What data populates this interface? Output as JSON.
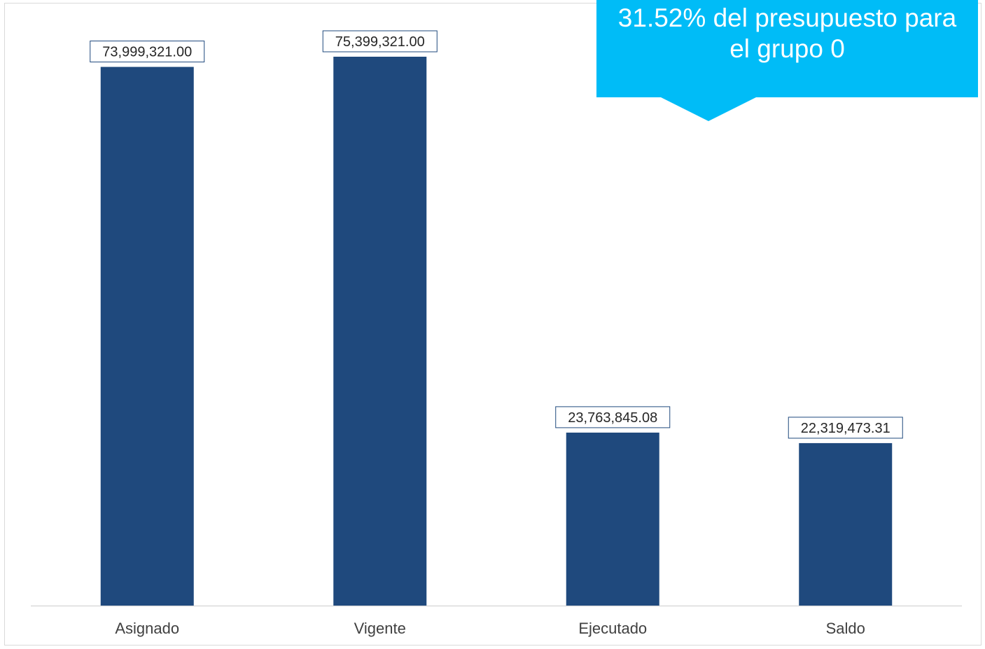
{
  "chart_data": {
    "type": "bar",
    "categories": [
      "Asignado",
      "Vigente",
      "Ejecutado",
      "Saldo"
    ],
    "values": [
      73999321.0,
      75399321.0,
      23763845.08,
      22319473.31
    ],
    "value_labels": [
      "73,999,321.00",
      "75,399,321.00",
      "23,763,845.08",
      "22,319,473.31"
    ],
    "ylim": [
      0,
      80000000
    ],
    "grid": false,
    "legend": "none",
    "bar_color": "#1f497d",
    "label_border_color": "#1f497d",
    "axis_color": "#d9d9d9"
  },
  "callout": {
    "line1": "31.52% del presupuesto para",
    "line2": "el grupo 0",
    "color": "#00bcf7"
  }
}
